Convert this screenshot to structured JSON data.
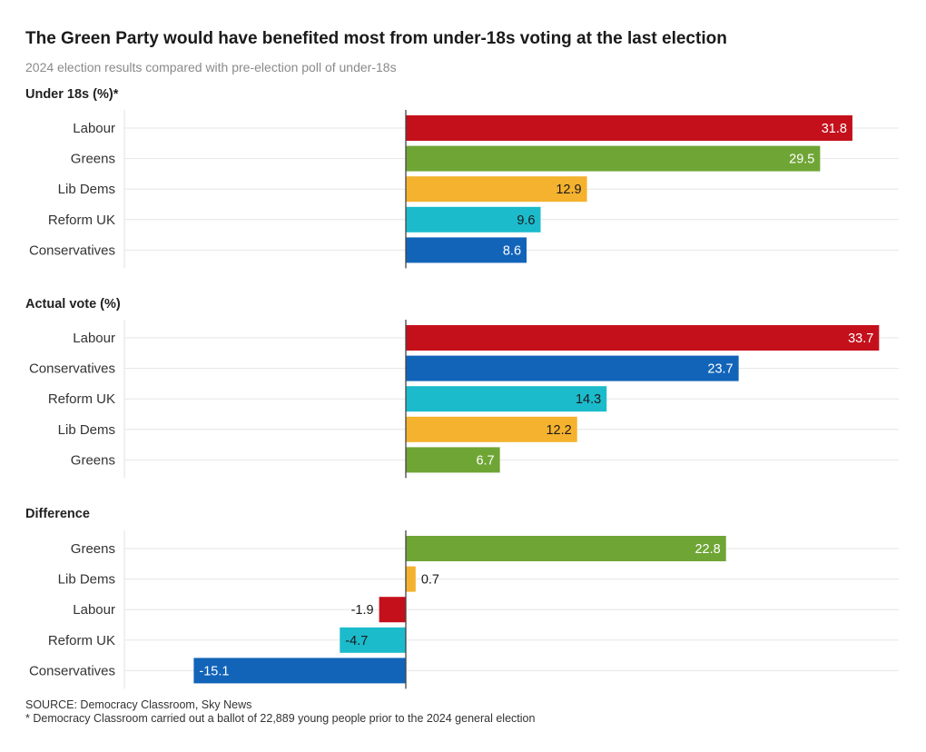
{
  "title": "The Green Party would have benefited most from under-18s voting at the last election",
  "subtitle": "2024 election results compared with pre-election poll of under-18s",
  "footer": {
    "source": "SOURCE: Democracy Classroom, Sky News",
    "note": "* Democracy Classroom carried out a ballot of 22,889 young people prior to the 2024 general election"
  },
  "party_colors": {
    "Labour": "#c4101b",
    "Greens": "#6fa535",
    "Lib Dems": "#f5b22e",
    "Reform UK": "#1bbbcc",
    "Conservatives": "#1264b9"
  },
  "label_text_color": {
    "Labour": "#ffffff",
    "Greens": "#ffffff",
    "Lib Dems": "#1a1a1a",
    "Reform UK": "#1a1a1a",
    "Conservatives": "#ffffff"
  },
  "chart_data": [
    {
      "type": "bar",
      "orientation": "horizontal",
      "title": "Under 18s (%)*",
      "categories": [
        "Labour",
        "Greens",
        "Lib Dems",
        "Reform UK",
        "Conservatives"
      ],
      "values": [
        31.8,
        29.5,
        12.9,
        9.6,
        8.6
      ],
      "xlim": [
        -20,
        35
      ],
      "grid": true
    },
    {
      "type": "bar",
      "orientation": "horizontal",
      "title": "Actual vote (%)",
      "categories": [
        "Labour",
        "Conservatives",
        "Reform UK",
        "Lib Dems",
        "Greens"
      ],
      "values": [
        33.7,
        23.7,
        14.3,
        12.2,
        6.7
      ],
      "xlim": [
        -20,
        35
      ],
      "grid": true
    },
    {
      "type": "bar",
      "orientation": "horizontal",
      "title": "Difference",
      "categories": [
        "Greens",
        "Lib Dems",
        "Labour",
        "Reform UK",
        "Conservatives"
      ],
      "values": [
        22.8,
        0.7,
        -1.9,
        -4.7,
        -15.1
      ],
      "xlim": [
        -20,
        35
      ],
      "grid": true
    }
  ]
}
